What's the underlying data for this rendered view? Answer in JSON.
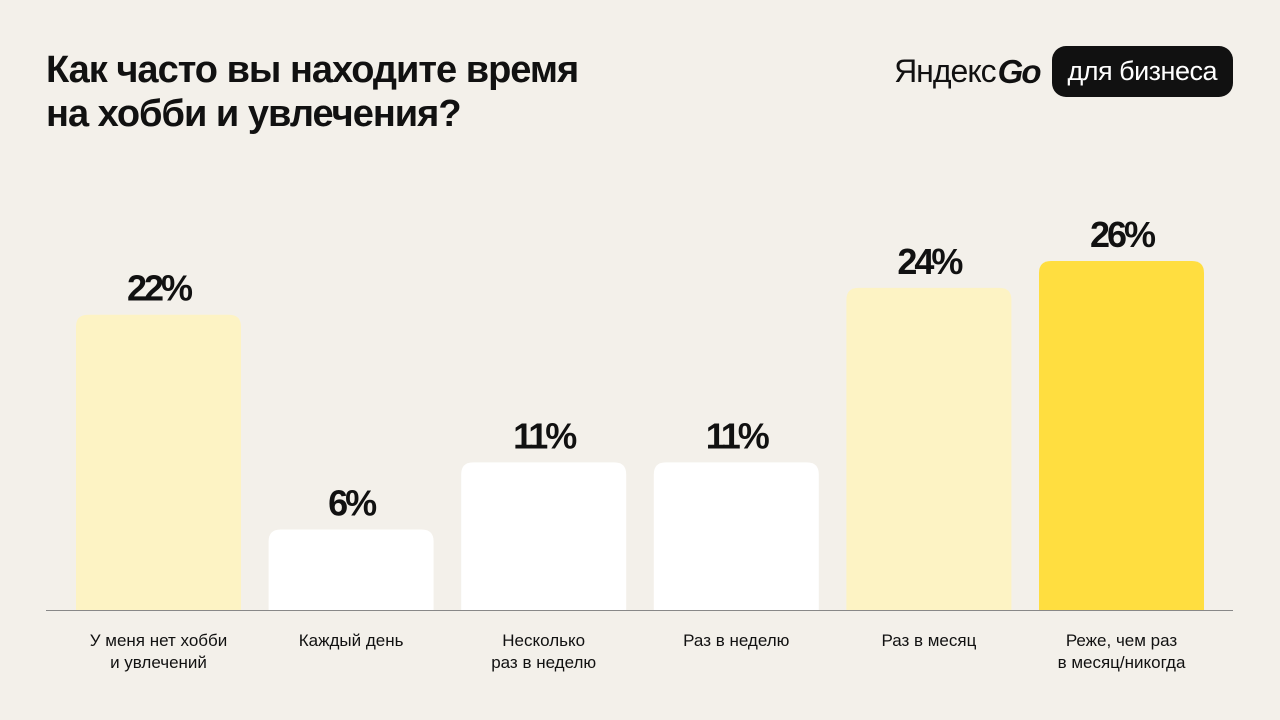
{
  "title_lines": [
    "Как часто вы находите время",
    "на хобби и увлечения?"
  ],
  "brand": {
    "yandex": "Яндекс",
    "go": "Go",
    "pill": "для бизнеса"
  },
  "colors": {
    "background": "#f3f0ea",
    "bar_light_yellow": "#fdf3c4",
    "bar_white": "#ffffff",
    "bar_accent": "#ffde40",
    "baseline": "#888888"
  },
  "chart_data": {
    "type": "bar",
    "title": "Как часто вы находите время на хобби и увлечения?",
    "categories": [
      [
        "У меня нет хобби",
        "и увлечений"
      ],
      [
        "Каждый день"
      ],
      [
        "Несколько",
        "раз в неделю"
      ],
      [
        "Раз в неделю"
      ],
      [
        "Раз в месяц"
      ],
      [
        "Реже, чем раз",
        "в месяц/никогда"
      ]
    ],
    "values": [
      22,
      6,
      11,
      11,
      24,
      26
    ],
    "value_labels": [
      "22%",
      "6%",
      "11%",
      "11%",
      "24%",
      "26%"
    ],
    "bar_colors": [
      "#fdf3c4",
      "#ffffff",
      "#ffffff",
      "#ffffff",
      "#fdf3c4",
      "#ffde40"
    ],
    "ylim": [
      0,
      26
    ],
    "grid": false,
    "legend": "none"
  }
}
